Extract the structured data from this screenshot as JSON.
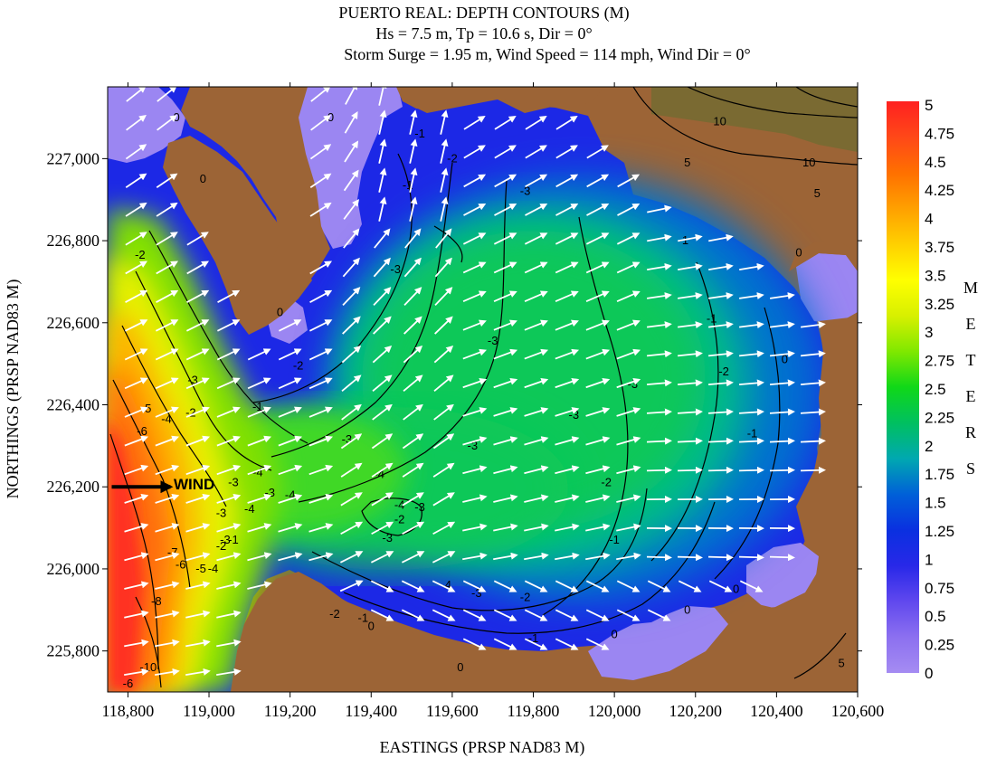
{
  "chart_data": {
    "type": "heatmap",
    "title": "PUERTO REAL: DEPTH CONTOURS (M)",
    "subtitle_lines": [
      "Hs = 7.5 m, Tp = 10.6 s, Dir = 0°",
      "Storm Surge = 1.95 m, Wind Speed = 114 mph, Wind Dir = 0°"
    ],
    "xlabel": "EASTINGS (PRSP NAD83 M)",
    "ylabel": "NORTHINGS (PRSP NAD83 M)",
    "xlim": [
      118750,
      120600
    ],
    "ylim": [
      225700,
      227175
    ],
    "x_ticks": [
      118800,
      119000,
      119200,
      119400,
      119600,
      119800,
      120000,
      120200,
      120400,
      120600
    ],
    "x_tick_labels": [
      "118,800",
      "119,000",
      "119,200",
      "119,400",
      "119,600",
      "119,800",
      "120,000",
      "120,200",
      "120,400",
      "120,600"
    ],
    "y_ticks": [
      225800,
      226000,
      226200,
      226400,
      226600,
      226800,
      227000
    ],
    "y_tick_labels": [
      "225,800",
      "226,000",
      "226,200",
      "226,400",
      "226,600",
      "226,800",
      "227,000"
    ],
    "colorbar": {
      "min": 0,
      "max": 5,
      "unit_letters": [
        "M",
        "E",
        "T",
        "E",
        "R",
        "S"
      ],
      "tick_labels": [
        "5",
        "4.75",
        "4.5",
        "4.25",
        "4",
        "3.75",
        "3.5",
        "3.25",
        "3",
        "2.75",
        "2.5",
        "2.25",
        "2",
        "1.75",
        "1.5",
        "1.25",
        "1",
        "0.75",
        "0.5",
        "0.25",
        "0"
      ],
      "colors": [
        "#a58cf2",
        "#8c70f0",
        "#6048ee",
        "#2828e8",
        "#0a30e0",
        "#0060d8",
        "#00a8b0",
        "#00c060",
        "#10d818",
        "#80e800",
        "#d8f000",
        "#ffff00",
        "#ffd000",
        "#ffa000",
        "#ff7000",
        "#ff4818",
        "#ff2020"
      ]
    },
    "contour_labels": [
      {
        "x": 118920,
        "y": 227100,
        "text": "0"
      },
      {
        "x": 118985,
        "y": 226950,
        "text": "0"
      },
      {
        "x": 119175,
        "y": 226625,
        "text": "0"
      },
      {
        "x": 119300,
        "y": 227100,
        "text": "0"
      },
      {
        "x": 119520,
        "y": 227060,
        "text": "-1"
      },
      {
        "x": 119490,
        "y": 226935,
        "text": "-1"
      },
      {
        "x": 119600,
        "y": 227000,
        "text": "-2"
      },
      {
        "x": 119780,
        "y": 226920,
        "text": "-3"
      },
      {
        "x": 119460,
        "y": 226730,
        "text": "-3"
      },
      {
        "x": 119220,
        "y": 226495,
        "text": "-2"
      },
      {
        "x": 119120,
        "y": 226395,
        "text": "-1"
      },
      {
        "x": 119340,
        "y": 226315,
        "text": "-3"
      },
      {
        "x": 119420,
        "y": 226230,
        "text": "-4"
      },
      {
        "x": 118830,
        "y": 226765,
        "text": "-2"
      },
      {
        "x": 118960,
        "y": 226460,
        "text": "-3"
      },
      {
        "x": 118955,
        "y": 226380,
        "text": "-2"
      },
      {
        "x": 118845,
        "y": 226390,
        "text": "-5"
      },
      {
        "x": 118835,
        "y": 226335,
        "text": "-6"
      },
      {
        "x": 118895,
        "y": 226365,
        "text": "-4"
      },
      {
        "x": 119030,
        "y": 226135,
        "text": "-3"
      },
      {
        "x": 119060,
        "y": 226210,
        "text": "-3"
      },
      {
        "x": 119100,
        "y": 226145,
        "text": "-4"
      },
      {
        "x": 119120,
        "y": 226235,
        "text": "-4"
      },
      {
        "x": 119200,
        "y": 226180,
        "text": "-4"
      },
      {
        "x": 119150,
        "y": 226185,
        "text": "-3"
      },
      {
        "x": 119470,
        "y": 226120,
        "text": "-2"
      },
      {
        "x": 119440,
        "y": 226075,
        "text": "-3"
      },
      {
        "x": 119520,
        "y": 226150,
        "text": "-3"
      },
      {
        "x": 119470,
        "y": 226155,
        "text": "-4"
      },
      {
        "x": 119700,
        "y": 226555,
        "text": "-3"
      },
      {
        "x": 119900,
        "y": 226375,
        "text": "-3"
      },
      {
        "x": 119650,
        "y": 226300,
        "text": "-3"
      },
      {
        "x": 119980,
        "y": 226210,
        "text": "-2"
      },
      {
        "x": 120000,
        "y": 226070,
        "text": "-1"
      },
      {
        "x": 120045,
        "y": 226450,
        "text": "-3"
      },
      {
        "x": 120170,
        "y": 226800,
        "text": "-1"
      },
      {
        "x": 120240,
        "y": 226610,
        "text": "-1"
      },
      {
        "x": 120270,
        "y": 226480,
        "text": "-2"
      },
      {
        "x": 120340,
        "y": 226330,
        "text": "-1"
      },
      {
        "x": 120420,
        "y": 226510,
        "text": "0"
      },
      {
        "x": 120455,
        "y": 226770,
        "text": "0"
      },
      {
        "x": 119380,
        "y": 225880,
        "text": "-1"
      },
      {
        "x": 119400,
        "y": 225860,
        "text": "0"
      },
      {
        "x": 119310,
        "y": 225890,
        "text": "-2"
      },
      {
        "x": 119585,
        "y": 225960,
        "text": "-4"
      },
      {
        "x": 119660,
        "y": 225940,
        "text": "-3"
      },
      {
        "x": 119780,
        "y": 225930,
        "text": "-2"
      },
      {
        "x": 119800,
        "y": 225830,
        "text": "-1"
      },
      {
        "x": 119620,
        "y": 225760,
        "text": "0"
      },
      {
        "x": 120000,
        "y": 225840,
        "text": "0"
      },
      {
        "x": 120180,
        "y": 225900,
        "text": "0"
      },
      {
        "x": 120300,
        "y": 225950,
        "text": "0"
      },
      {
        "x": 120260,
        "y": 227090,
        "text": "10"
      },
      {
        "x": 120180,
        "y": 226990,
        "text": "5"
      },
      {
        "x": 120480,
        "y": 226990,
        "text": "10"
      },
      {
        "x": 120500,
        "y": 226915,
        "text": "5"
      },
      {
        "x": 120560,
        "y": 225770,
        "text": "5"
      },
      {
        "x": 118870,
        "y": 225920,
        "text": "-8"
      },
      {
        "x": 118850,
        "y": 225760,
        "text": "-10"
      },
      {
        "x": 118800,
        "y": 225720,
        "text": "-6"
      },
      {
        "x": 118910,
        "y": 226040,
        "text": "-7"
      },
      {
        "x": 118930,
        "y": 226010,
        "text": "-6"
      },
      {
        "x": 118980,
        "y": 226000,
        "text": "-5"
      },
      {
        "x": 119010,
        "y": 226000,
        "text": "-4"
      },
      {
        "x": 119040,
        "y": 226070,
        "text": "-3"
      },
      {
        "x": 119030,
        "y": 226055,
        "text": "-2"
      },
      {
        "x": 119060,
        "y": 226070,
        "text": "-1"
      }
    ],
    "wind_label": "WIND",
    "wind_arrow": {
      "x_start": 118760,
      "x_end": 118905,
      "y": 226200
    }
  }
}
